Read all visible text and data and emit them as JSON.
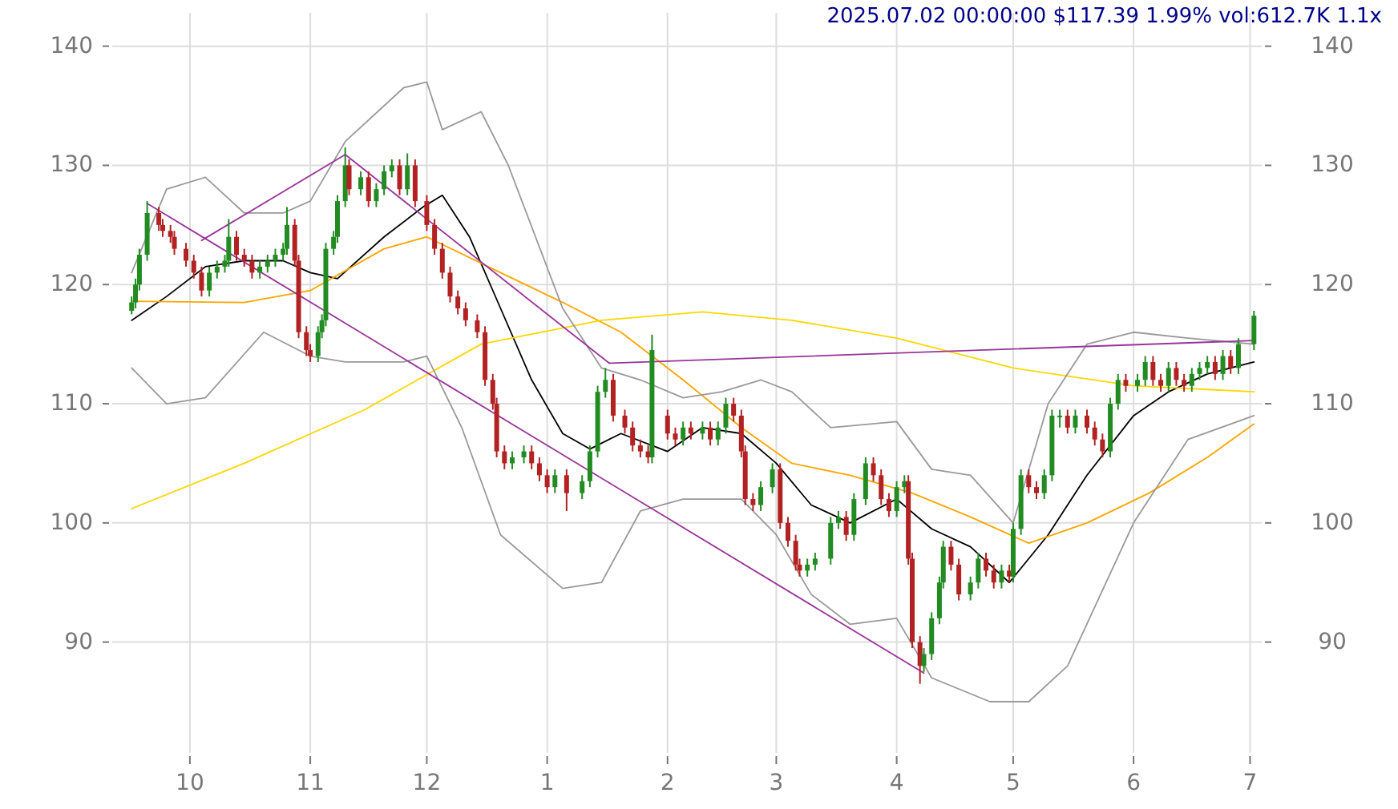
{
  "chart_data": {
    "type": "candlestick",
    "title": "2025.07.02 00:00:00 $117.39 1.99% vol:612.7K 1.1x",
    "xlim": [
      "2024-09-11",
      "2025-07-04"
    ],
    "xticks": [
      {
        "value": "2024-10-01",
        "label": "10"
      },
      {
        "value": "2024-11-01",
        "label": "11"
      },
      {
        "value": "2024-12-01",
        "label": "12"
      },
      {
        "value": "2025-01-01",
        "label": "1"
      },
      {
        "value": "2025-02-01",
        "label": "2"
      },
      {
        "value": "2025-03-01",
        "label": "3"
      },
      {
        "value": "2025-04-01",
        "label": "4"
      },
      {
        "value": "2025-05-01",
        "label": "5"
      },
      {
        "value": "2025-06-01",
        "label": "6"
      },
      {
        "value": "2025-07-01",
        "label": "7"
      }
    ],
    "ylim": [
      80.7,
      142.8
    ],
    "yticks": [
      90,
      100,
      110,
      120,
      130,
      140
    ],
    "y2lim": [
      80.7,
      142.8
    ],
    "y2ticks": [
      90,
      100,
      110,
      120,
      130,
      140
    ],
    "grid": true,
    "x": [
      "2024-09-16",
      "2024-09-17",
      "2024-09-18",
      "2024-09-20",
      "2024-09-23",
      "2024-09-24",
      "2024-09-26",
      "2024-09-27",
      "2024-09-30",
      "2024-10-02",
      "2024-10-04",
      "2024-10-06",
      "2024-10-08",
      "2024-10-10",
      "2024-10-11",
      "2024-10-13",
      "2024-10-15",
      "2024-10-17",
      "2024-10-19",
      "2024-10-21",
      "2024-10-23",
      "2024-10-25",
      "2024-10-26",
      "2024-10-28",
      "2024-10-29",
      "2024-10-31",
      "2024-11-01",
      "2024-11-03",
      "2024-11-04",
      "2024-11-05",
      "2024-11-07",
      "2024-11-08",
      "2024-11-10",
      "2024-11-11",
      "2024-11-14",
      "2024-11-16",
      "2024-11-18",
      "2024-11-20",
      "2024-11-22",
      "2024-11-24",
      "2024-11-26",
      "2024-11-28",
      "2024-12-01",
      "2024-12-03",
      "2024-12-05",
      "2024-12-07",
      "2024-12-09",
      "2024-12-11",
      "2024-12-14",
      "2024-12-16",
      "2024-12-18",
      "2024-12-19",
      "2024-12-21",
      "2024-12-23",
      "2024-12-26",
      "2024-12-28",
      "2024-12-30",
      "2025-01-01",
      "2025-01-03",
      "2025-01-06",
      "2025-01-10",
      "2025-01-12",
      "2025-01-14",
      "2025-01-16",
      "2025-01-18",
      "2025-01-21",
      "2025-01-23",
      "2025-01-25",
      "2025-01-27",
      "2025-01-28",
      "2025-02-01",
      "2025-02-03",
      "2025-02-05",
      "2025-02-07",
      "2025-02-10",
      "2025-02-12",
      "2025-02-14",
      "2025-02-16",
      "2025-02-18",
      "2025-02-20",
      "2025-02-21",
      "2025-02-23",
      "2025-02-25",
      "2025-02-28",
      "2025-03-02",
      "2025-03-04",
      "2025-03-06",
      "2025-03-07",
      "2025-03-09",
      "2025-03-11",
      "2025-03-15",
      "2025-03-17",
      "2025-03-19",
      "2025-03-21",
      "2025-03-24",
      "2025-03-26",
      "2025-03-28",
      "2025-03-30",
      "2025-04-01",
      "2025-04-03",
      "2025-04-04",
      "2025-04-05",
      "2025-04-07",
      "2025-04-08",
      "2025-04-10",
      "2025-04-12",
      "2025-04-13",
      "2025-04-15",
      "2025-04-17",
      "2025-04-20",
      "2025-04-22",
      "2025-04-24",
      "2025-04-26",
      "2025-04-28",
      "2025-04-30",
      "2025-05-01",
      "2025-05-03",
      "2025-05-05",
      "2025-05-07",
      "2025-05-09",
      "2025-05-11",
      "2025-05-13",
      "2025-05-15",
      "2025-05-17",
      "2025-05-20",
      "2025-05-22",
      "2025-05-24",
      "2025-05-26",
      "2025-05-28",
      "2025-05-30",
      "2025-06-02",
      "2025-06-04",
      "2025-06-06",
      "2025-06-08",
      "2025-06-10",
      "2025-06-12",
      "2025-06-14",
      "2025-06-16",
      "2025-06-18",
      "2025-06-20",
      "2025-06-22",
      "2025-06-24",
      "2025-06-26",
      "2025-06-28",
      "2025-07-02"
    ],
    "ohlc": [
      [
        117.8,
        119,
        117.5,
        118.5
      ],
      [
        118.5,
        120.5,
        118,
        120
      ],
      [
        120,
        123,
        119.5,
        122.5
      ],
      [
        122.5,
        127,
        122,
        126
      ],
      [
        126,
        126.5,
        124.5,
        125
      ],
      [
        125,
        125.5,
        124,
        124.5
      ],
      [
        124.5,
        125,
        123.5,
        124
      ],
      [
        124,
        124.5,
        122.5,
        123
      ],
      [
        123,
        123.5,
        121.5,
        122
      ],
      [
        122,
        122.5,
        120.5,
        121
      ],
      [
        121,
        121.5,
        119,
        119.5
      ],
      [
        119.5,
        121.5,
        119,
        121
      ],
      [
        121,
        122,
        120.5,
        121.5
      ],
      [
        121.5,
        122.5,
        121,
        122
      ],
      [
        122,
        125.5,
        121.5,
        124
      ],
      [
        124,
        124.5,
        122,
        122.5
      ],
      [
        122.5,
        123,
        121.5,
        122
      ],
      [
        122,
        122.5,
        120.5,
        121
      ],
      [
        121,
        122,
        120.5,
        121.5
      ],
      [
        121.5,
        122.5,
        121,
        122
      ],
      [
        122,
        123,
        121.5,
        122.5
      ],
      [
        122.5,
        123.5,
        122,
        123
      ],
      [
        123,
        126.5,
        122.5,
        125
      ],
      [
        125,
        125.5,
        121.5,
        122
      ],
      [
        122,
        122.5,
        115.5,
        116
      ],
      [
        116,
        116.5,
        114,
        114.5
      ],
      [
        114.5,
        115,
        113.5,
        114
      ],
      [
        114,
        116.5,
        113.5,
        116
      ],
      [
        116,
        117.5,
        115.5,
        117
      ],
      [
        117,
        123.5,
        116.5,
        123
      ],
      [
        123,
        124.5,
        122.5,
        124
      ],
      [
        124,
        127.5,
        123.5,
        127
      ],
      [
        127,
        131.5,
        126.5,
        130
      ],
      [
        130,
        130.5,
        127.5,
        128
      ],
      [
        128,
        129.5,
        127.5,
        129
      ],
      [
        129,
        129.5,
        126.5,
        127
      ],
      [
        127,
        128.5,
        126.5,
        128
      ],
      [
        128,
        130,
        127.5,
        129.5
      ],
      [
        129.5,
        130.5,
        129,
        130
      ],
      [
        130,
        130.5,
        127.5,
        128
      ],
      [
        128,
        131,
        127.5,
        130
      ],
      [
        130,
        130.5,
        126.5,
        127
      ],
      [
        127,
        127.5,
        124.5,
        125
      ],
      [
        125,
        125.5,
        122.5,
        123
      ],
      [
        123,
        123.5,
        120.5,
        121
      ],
      [
        121,
        121.5,
        118.5,
        119
      ],
      [
        119,
        119.5,
        117.5,
        118
      ],
      [
        118,
        118.5,
        116.5,
        117
      ],
      [
        117,
        117.5,
        115.5,
        116
      ],
      [
        116,
        116.5,
        111.5,
        112
      ],
      [
        112,
        112.5,
        109.5,
        110
      ],
      [
        110,
        110.5,
        105.5,
        106
      ],
      [
        106,
        106.5,
        104.5,
        105
      ],
      [
        105,
        106,
        104.5,
        105.5
      ],
      [
        105.5,
        106.5,
        105,
        106
      ],
      [
        106,
        106.5,
        104.5,
        105
      ],
      [
        105,
        105.5,
        103.5,
        104
      ],
      [
        104,
        104.5,
        102.5,
        103
      ],
      [
        103,
        104.5,
        102.5,
        104
      ],
      [
        104,
        104.5,
        101,
        102.5
      ],
      [
        102.5,
        104,
        102,
        103.5
      ],
      [
        103.5,
        106.5,
        103,
        106
      ],
      [
        106,
        111.5,
        105.5,
        111
      ],
      [
        111,
        113,
        110.5,
        112
      ],
      [
        112,
        112.5,
        108.5,
        109
      ],
      [
        109,
        109.5,
        107.5,
        108
      ],
      [
        108,
        108.5,
        106,
        106.5
      ],
      [
        106.5,
        107,
        105.5,
        106
      ],
      [
        106,
        106.5,
        105,
        105.5
      ],
      [
        105.5,
        115.8,
        105,
        114.5
      ],
      [
        109,
        109.5,
        107,
        107.5
      ],
      [
        107.5,
        108,
        106.5,
        107
      ],
      [
        107,
        108.5,
        106.5,
        108
      ],
      [
        108,
        108.5,
        107,
        107.5
      ],
      [
        107.5,
        108.5,
        107,
        108
      ],
      [
        108,
        108.5,
        106.5,
        107
      ],
      [
        107,
        108.5,
        106.5,
        108
      ],
      [
        108,
        110.5,
        107.5,
        110
      ],
      [
        110,
        110.5,
        108.5,
        109
      ],
      [
        109,
        109.5,
        105.5,
        106
      ],
      [
        106,
        106.5,
        101.5,
        102
      ],
      [
        102,
        102.5,
        101,
        101.5
      ],
      [
        101.5,
        103.5,
        101,
        103
      ],
      [
        103,
        105,
        102.5,
        104.5
      ],
      [
        104.5,
        105,
        99.5,
        100
      ],
      [
        100,
        100.5,
        98,
        98.5
      ],
      [
        98.5,
        99,
        96,
        96.5
      ],
      [
        96.5,
        97,
        95.5,
        96
      ],
      [
        96,
        97,
        95.5,
        96.5
      ],
      [
        96.5,
        97.5,
        96,
        97
      ],
      [
        97,
        100.5,
        96.5,
        100
      ],
      [
        100,
        101,
        99.5,
        100.5
      ],
      [
        100.5,
        101,
        98.5,
        99
      ],
      [
        99,
        102.5,
        98.5,
        102
      ],
      [
        102,
        105.5,
        101.5,
        105
      ],
      [
        105,
        105.5,
        103.5,
        104
      ],
      [
        104,
        104.5,
        101.5,
        102
      ],
      [
        102,
        102.5,
        100.5,
        101
      ],
      [
        101,
        103.5,
        100.5,
        103
      ],
      [
        103,
        104,
        102.5,
        103.5
      ],
      [
        103.5,
        104,
        96.5,
        97
      ],
      [
        97,
        97.5,
        89.5,
        90
      ],
      [
        90,
        90.5,
        86.5,
        88
      ],
      [
        88,
        89.5,
        87.5,
        89
      ],
      [
        89,
        92.5,
        88.5,
        92
      ],
      [
        92,
        95.5,
        91.5,
        95
      ],
      [
        95,
        98.5,
        94.5,
        98
      ],
      [
        98,
        98.5,
        96,
        96.5
      ],
      [
        96.5,
        97,
        93.5,
        94
      ],
      [
        94,
        95.5,
        93.5,
        95
      ],
      [
        95,
        97.5,
        94.5,
        97
      ],
      [
        97,
        97.5,
        95.5,
        96
      ],
      [
        96,
        96.5,
        94.5,
        95
      ],
      [
        95,
        96.5,
        94.5,
        96
      ],
      [
        96,
        96.5,
        95,
        95.5
      ],
      [
        95.5,
        100,
        95,
        99.5
      ],
      [
        99.5,
        104.5,
        99,
        104
      ],
      [
        104,
        104.5,
        102.5,
        103
      ],
      [
        103,
        103.5,
        102,
        102.5
      ],
      [
        102.5,
        104.5,
        102,
        104
      ],
      [
        104,
        109.5,
        103.5,
        109
      ],
      [
        109,
        109.5,
        108,
        109
      ],
      [
        109,
        109.5,
        107.5,
        108
      ],
      [
        108,
        109.5,
        107.5,
        109
      ],
      [
        109,
        109.5,
        107.5,
        108
      ],
      [
        108,
        108.5,
        106.5,
        107
      ],
      [
        107,
        107.5,
        105.5,
        106
      ],
      [
        106,
        110.5,
        105.5,
        110
      ],
      [
        110,
        112.5,
        109.5,
        112
      ],
      [
        112,
        112.5,
        111,
        111.5
      ],
      [
        111.5,
        112.5,
        111,
        112
      ],
      [
        112,
        114,
        111.5,
        113.5
      ],
      [
        113.5,
        114,
        111.5,
        112
      ],
      [
        112,
        112.5,
        111,
        111.5
      ],
      [
        111.5,
        113.5,
        111,
        113
      ],
      [
        113,
        113.5,
        111.5,
        112
      ],
      [
        112,
        112.5,
        111,
        111.5
      ],
      [
        111.5,
        113,
        111,
        112.5
      ],
      [
        112.5,
        113.5,
        112,
        113
      ],
      [
        113,
        114,
        112.5,
        113.5
      ],
      [
        113.5,
        114,
        112,
        112.5
      ],
      [
        112.5,
        114.5,
        112,
        114
      ],
      [
        114,
        114.5,
        112.5,
        113
      ],
      [
        113,
        115.5,
        112.5,
        115
      ],
      [
        115,
        117.8,
        114.5,
        117.39
      ]
    ],
    "series": [
      {
        "type": "line",
        "color": "#000000",
        "x": [
          "2024-09-16",
          "2024-09-25",
          "2024-10-05",
          "2024-10-15",
          "2024-10-25",
          "2024-11-01",
          "2024-11-08",
          "2024-11-20",
          "2024-11-30",
          "2024-12-05",
          "2024-12-12",
          "2024-12-20",
          "2024-12-28",
          "2025-01-05",
          "2025-01-12",
          "2025-01-20",
          "2025-02-01",
          "2025-02-10",
          "2025-02-20",
          "2025-03-01",
          "2025-03-10",
          "2025-03-20",
          "2025-04-01",
          "2025-04-10",
          "2025-04-20",
          "2025-04-30",
          "2025-05-10",
          "2025-05-20",
          "2025-06-01",
          "2025-06-10",
          "2025-06-20",
          "2025-07-02"
        ],
        "values": [
          117,
          119,
          121.5,
          122,
          122,
          121,
          120.5,
          124,
          126.5,
          127.5,
          124,
          118,
          112,
          107.5,
          106.2,
          107.5,
          106,
          108,
          107.5,
          105,
          101.5,
          100,
          102,
          99.5,
          98,
          95,
          99,
          104,
          109,
          111,
          112.5,
          113.5
        ]
      },
      {
        "type": "line",
        "color": "#ffa500",
        "x": [
          "2024-09-16",
          "2024-10-15",
          "2024-11-01",
          "2024-11-20",
          "2024-12-01",
          "2024-12-20",
          "2025-01-05",
          "2025-01-20",
          "2025-02-05",
          "2025-02-20",
          "2025-03-05",
          "2025-03-20",
          "2025-04-05",
          "2025-04-20",
          "2025-05-05",
          "2025-05-20",
          "2025-06-05",
          "2025-06-20",
          "2025-07-02"
        ],
        "values": [
          118.6,
          118.5,
          119.5,
          123,
          124,
          121,
          118.5,
          116,
          112,
          108,
          105,
          104,
          102.5,
          100.5,
          98.3,
          100,
          102.5,
          105.5,
          108.3
        ]
      },
      {
        "type": "line",
        "color": "#ffd700",
        "x": [
          "2024-09-16",
          "2024-10-15",
          "2024-11-15",
          "2024-12-15",
          "2025-01-15",
          "2025-02-10",
          "2025-03-05",
          "2025-04-01",
          "2025-05-01",
          "2025-06-01",
          "2025-07-02"
        ],
        "values": [
          101.2,
          105,
          109.5,
          115,
          117,
          117.7,
          117,
          115.5,
          113,
          111.5,
          111
        ]
      },
      {
        "type": "line",
        "color": "#999999",
        "x": [
          "2024-09-16",
          "2024-09-25",
          "2024-10-05",
          "2024-10-15",
          "2024-10-25",
          "2024-11-01",
          "2024-11-10",
          "2024-11-25",
          "2024-12-01",
          "2024-12-05",
          "2024-12-15",
          "2024-12-22",
          "2025-01-05",
          "2025-01-15",
          "2025-01-25",
          "2025-02-05",
          "2025-02-15",
          "2025-02-25",
          "2025-03-05",
          "2025-03-15",
          "2025-04-01",
          "2025-04-10",
          "2025-04-20",
          "2025-05-01",
          "2025-05-10",
          "2025-05-20",
          "2025-06-01",
          "2025-06-15",
          "2025-07-02"
        ],
        "values": [
          121,
          128,
          129,
          126,
          126,
          127,
          132,
          136.5,
          137,
          133,
          134.5,
          130,
          118,
          113,
          112,
          110.5,
          111,
          112,
          111,
          108,
          108.5,
          104.5,
          104,
          100,
          110,
          115,
          116,
          115.5,
          115
        ]
      },
      {
        "type": "line",
        "color": "#999999",
        "x": [
          "2024-09-16",
          "2024-09-25",
          "2024-10-05",
          "2024-10-20",
          "2024-11-01",
          "2024-11-10",
          "2024-11-25",
          "2024-12-01",
          "2024-12-10",
          "2024-12-20",
          "2025-01-05",
          "2025-01-15",
          "2025-01-25",
          "2025-02-05",
          "2025-02-20",
          "2025-03-01",
          "2025-03-10",
          "2025-03-20",
          "2025-04-01",
          "2025-04-10",
          "2025-04-25",
          "2025-05-05",
          "2025-05-15",
          "2025-06-01",
          "2025-06-15",
          "2025-07-02"
        ],
        "values": [
          113,
          110,
          110.5,
          116,
          114,
          113.5,
          113.5,
          114,
          108,
          99,
          94.5,
          95,
          101,
          102,
          102,
          99,
          94,
          91.5,
          92,
          87,
          85,
          85,
          88,
          100,
          107,
          109
        ]
      },
      {
        "type": "line",
        "color": "#993399",
        "x": [
          "2024-09-20",
          "2025-04-08"
        ],
        "values": [
          126.8,
          87.4
        ]
      },
      {
        "type": "line",
        "color": "#993399",
        "x": [
          "2024-10-04",
          "2024-11-10"
        ],
        "values": [
          123.7,
          130.9
        ]
      },
      {
        "type": "line",
        "color": "#993399",
        "x": [
          "2024-11-10",
          "2025-01-17"
        ],
        "values": [
          130.9,
          113.4
        ]
      },
      {
        "type": "line",
        "color": "#993399",
        "x": [
          "2025-01-17",
          "2025-07-02"
        ],
        "values": [
          113.4,
          115.3
        ]
      }
    ]
  }
}
